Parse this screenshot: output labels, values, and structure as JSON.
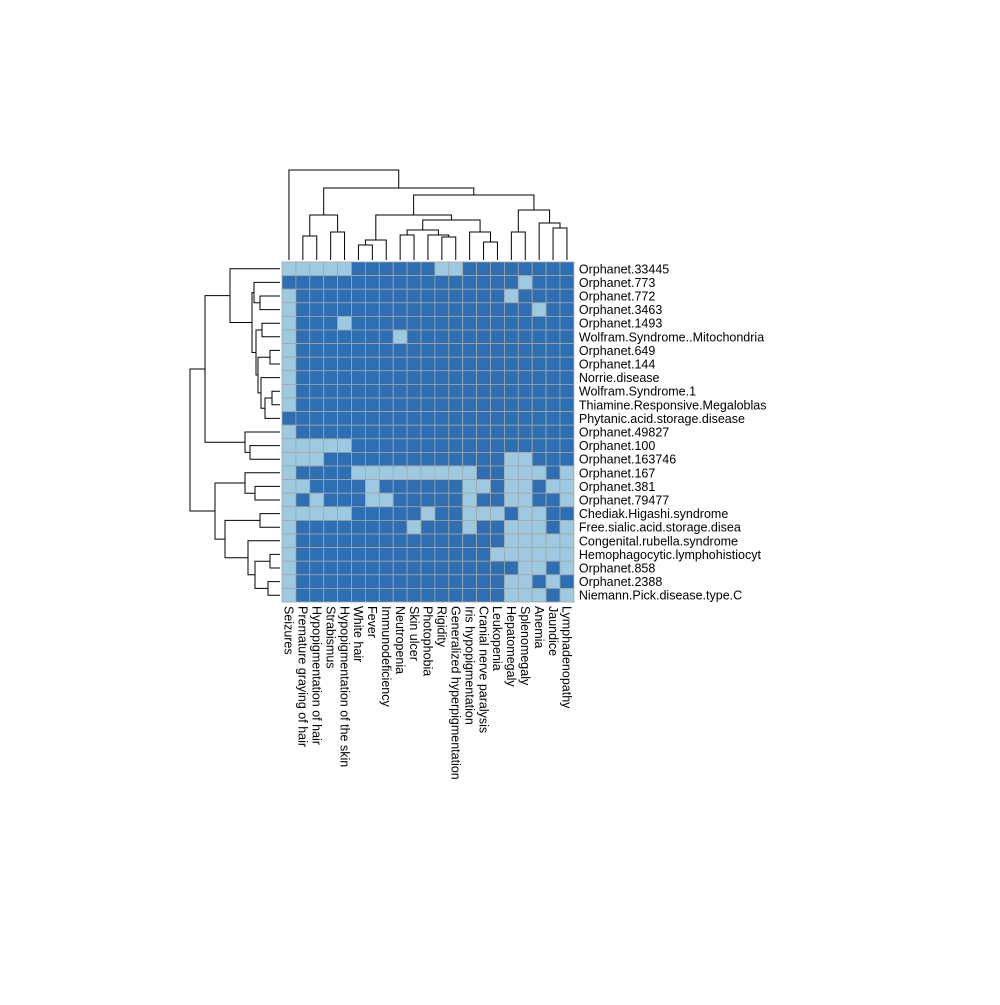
{
  "chart_data": {
    "type": "heatmap",
    "title": "",
    "xlabel": "",
    "ylabel": "",
    "legend": "none",
    "colors": {
      "present": "#2e6eb2",
      "absent": "#9ecae1",
      "grid": "#a5a5a5",
      "dendrogram": "#000000"
    },
    "columns": [
      "Seizures",
      "Premature graying of hair",
      "Hypopigmentation of hair",
      "Strabismus",
      "Hypopigmentation of the skin",
      "White hair",
      "Fever",
      "Immunodeficiency",
      "Neutropenia",
      "Skin ulcer",
      "Photophobia",
      "Rigidity",
      "Generalized hyperpigmentation",
      "Iris hypopigmentation",
      "Cranial nerve paralysis",
      "Leukopenia",
      "Hepatomegaly",
      "Splenomegaly",
      "Anemia",
      "Jaundice",
      "Lymphadenopathy"
    ],
    "rows": [
      "Orphanet.33445",
      "Orphanet.773",
      "Orphanet.772",
      "Orphanet.3463",
      "Orphanet.1493",
      "Wolfram.Syndrome..Mitochondria",
      "Orphanet.649",
      "Orphanet.144",
      "Norrie.disease",
      "Wolfram.Syndrome.1",
      "Thiamine.Responsive.Megaloblas",
      "Phytanic.acid.storage.disease",
      "Orphanet.49827",
      "Orphanet.100",
      "Orphanet.163746",
      "Orphanet.167",
      "Orphanet.381",
      "Orphanet.79477",
      "Chediak.Higashi.syndrome",
      "Free.sialic.acid.storage.disea",
      "Congenital.rubella.syndrome",
      "Hemophagocytic.lymphohistiocyt",
      "Orphanet.858",
      "Orphanet.2388",
      "Niemann.Pick.disease.type.C"
    ],
    "values": [
      [
        0,
        0,
        0,
        0,
        0,
        1,
        1,
        1,
        1,
        1,
        1,
        0,
        0,
        1,
        1,
        1,
        1,
        1,
        1,
        1,
        1
      ],
      [
        1,
        1,
        1,
        1,
        1,
        1,
        1,
        1,
        1,
        1,
        1,
        1,
        1,
        1,
        1,
        1,
        1,
        0,
        1,
        1,
        1
      ],
      [
        0,
        1,
        1,
        1,
        1,
        1,
        1,
        1,
        1,
        1,
        1,
        1,
        1,
        1,
        1,
        1,
        0,
        1,
        1,
        1,
        1
      ],
      [
        0,
        1,
        1,
        1,
        1,
        1,
        1,
        1,
        1,
        1,
        1,
        1,
        1,
        1,
        1,
        1,
        1,
        1,
        0,
        1,
        1
      ],
      [
        0,
        1,
        1,
        1,
        0,
        1,
        1,
        1,
        1,
        1,
        1,
        1,
        1,
        1,
        1,
        1,
        1,
        1,
        1,
        1,
        1
      ],
      [
        0,
        1,
        1,
        1,
        1,
        1,
        1,
        1,
        0,
        1,
        1,
        1,
        1,
        1,
        1,
        1,
        1,
        1,
        1,
        1,
        1
      ],
      [
        0,
        1,
        1,
        1,
        1,
        1,
        1,
        1,
        1,
        1,
        1,
        1,
        1,
        1,
        1,
        1,
        1,
        1,
        1,
        1,
        1
      ],
      [
        0,
        1,
        1,
        1,
        1,
        1,
        1,
        1,
        1,
        1,
        1,
        1,
        1,
        1,
        1,
        1,
        1,
        1,
        1,
        1,
        1
      ],
      [
        0,
        1,
        1,
        1,
        1,
        1,
        1,
        1,
        1,
        1,
        1,
        1,
        1,
        1,
        1,
        1,
        1,
        1,
        1,
        1,
        1
      ],
      [
        0,
        1,
        1,
        1,
        1,
        1,
        1,
        1,
        1,
        1,
        1,
        1,
        1,
        1,
        1,
        1,
        1,
        1,
        1,
        1,
        1
      ],
      [
        0,
        1,
        1,
        1,
        1,
        1,
        1,
        1,
        1,
        1,
        1,
        1,
        1,
        1,
        1,
        1,
        1,
        1,
        1,
        1,
        1
      ],
      [
        1,
        1,
        1,
        1,
        1,
        1,
        1,
        1,
        1,
        1,
        1,
        1,
        1,
        1,
        1,
        1,
        1,
        1,
        1,
        1,
        1
      ],
      [
        0,
        1,
        1,
        1,
        1,
        1,
        1,
        1,
        1,
        1,
        1,
        1,
        1,
        1,
        1,
        1,
        1,
        1,
        1,
        1,
        1
      ],
      [
        0,
        0,
        0,
        0,
        0,
        1,
        1,
        1,
        1,
        1,
        1,
        1,
        1,
        1,
        1,
        1,
        1,
        1,
        1,
        1,
        1
      ],
      [
        0,
        0,
        0,
        1,
        1,
        1,
        1,
        1,
        1,
        1,
        1,
        1,
        1,
        1,
        1,
        1,
        0,
        0,
        1,
        1,
        1
      ],
      [
        0,
        1,
        1,
        1,
        1,
        0,
        0,
        0,
        0,
        0,
        0,
        0,
        0,
        0,
        1,
        1,
        0,
        0,
        0,
        1,
        0
      ],
      [
        0,
        0,
        1,
        1,
        1,
        1,
        0,
        1,
        1,
        1,
        1,
        1,
        1,
        0,
        0,
        1,
        0,
        0,
        1,
        0,
        0
      ],
      [
        0,
        1,
        0,
        1,
        1,
        1,
        0,
        0,
        1,
        1,
        1,
        1,
        1,
        0,
        1,
        1,
        0,
        0,
        1,
        1,
        0
      ],
      [
        0,
        0,
        0,
        0,
        0,
        1,
        1,
        1,
        1,
        1,
        0,
        1,
        1,
        0,
        0,
        0,
        1,
        0,
        0,
        1,
        1
      ],
      [
        0,
        1,
        1,
        1,
        1,
        1,
        1,
        1,
        1,
        0,
        1,
        1,
        1,
        0,
        1,
        1,
        0,
        0,
        0,
        1,
        0
      ],
      [
        0,
        1,
        1,
        1,
        1,
        1,
        1,
        1,
        1,
        1,
        1,
        1,
        1,
        1,
        1,
        1,
        0,
        0,
        0,
        0,
        0
      ],
      [
        0,
        1,
        1,
        1,
        1,
        1,
        1,
        1,
        1,
        1,
        1,
        1,
        1,
        1,
        1,
        0,
        0,
        0,
        0,
        0,
        0
      ],
      [
        0,
        1,
        1,
        1,
        1,
        1,
        1,
        1,
        1,
        1,
        1,
        1,
        1,
        1,
        1,
        1,
        1,
        0,
        0,
        1,
        0
      ],
      [
        0,
        1,
        1,
        1,
        1,
        1,
        1,
        1,
        1,
        1,
        1,
        1,
        1,
        1,
        1,
        1,
        0,
        0,
        1,
        0,
        1
      ],
      [
        0,
        1,
        1,
        1,
        1,
        1,
        1,
        1,
        1,
        1,
        1,
        1,
        1,
        1,
        1,
        1,
        0,
        0,
        0,
        1,
        0
      ]
    ]
  }
}
